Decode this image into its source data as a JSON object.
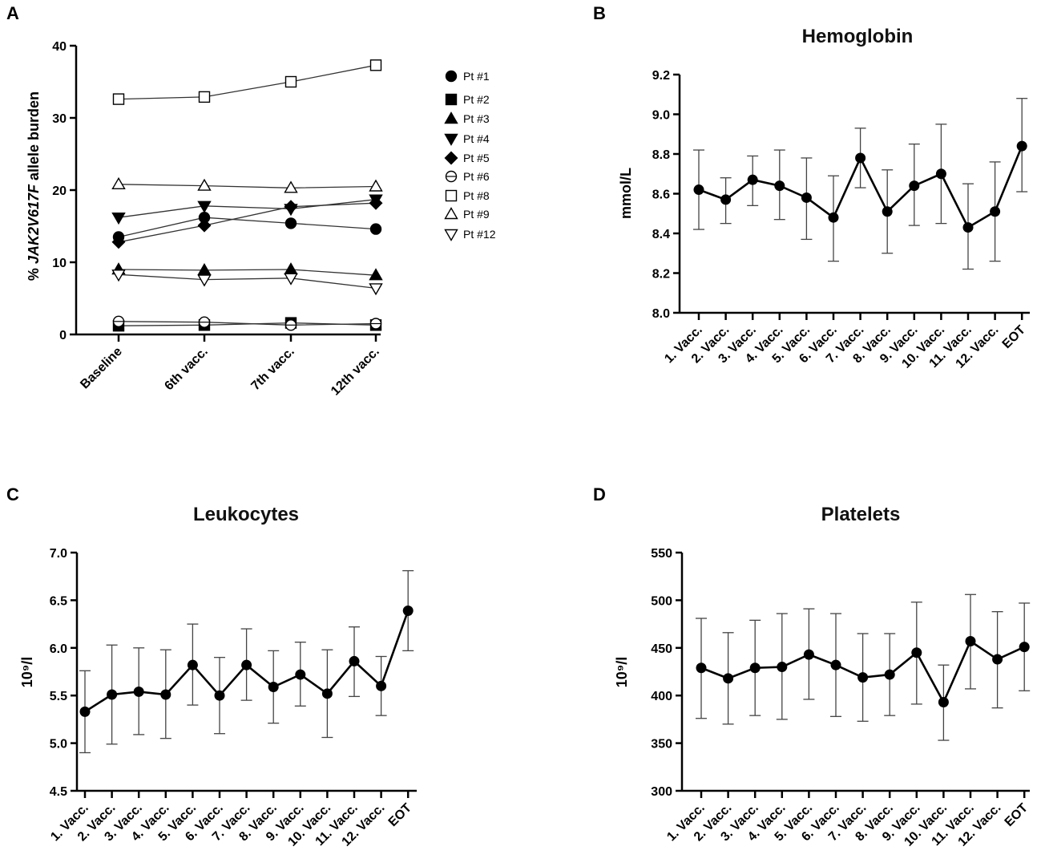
{
  "chart_data": [
    {
      "id": "A",
      "panel_label": "A",
      "type": "line",
      "title": "",
      "ylabel_prefix": "% ",
      "ylabel_italic": "JAK2V617F",
      "ylabel_suffix": " allele burden",
      "ylim": [
        0,
        40
      ],
      "yticks": [
        0,
        10,
        20,
        30,
        40
      ],
      "categories": [
        "Baseline",
        "6th vacc.",
        "7th vacc.",
        "12th vacc."
      ],
      "legend_position": "right",
      "series": [
        {
          "name": "Pt #1",
          "marker": "circle-filled",
          "values": [
            13.5,
            16.2,
            15.4,
            14.6
          ]
        },
        {
          "name": "Pt #2",
          "marker": "square-filled",
          "values": [
            1.2,
            1.3,
            1.6,
            1.3
          ]
        },
        {
          "name": "Pt #3",
          "marker": "triangle-up-filled",
          "values": [
            9.0,
            8.9,
            9.0,
            8.2
          ]
        },
        {
          "name": "Pt #4",
          "marker": "triangle-down-filled",
          "values": [
            16.2,
            17.8,
            17.4,
            18.7
          ]
        },
        {
          "name": "Pt #5",
          "marker": "diamond-filled",
          "values": [
            12.8,
            15.1,
            17.7,
            18.2
          ]
        },
        {
          "name": "Pt #6",
          "marker": "circle-open-line",
          "values": [
            1.8,
            1.7,
            1.3,
            1.5
          ]
        },
        {
          "name": "Pt #8",
          "marker": "square-open",
          "values": [
            32.6,
            32.9,
            35.0,
            37.3
          ]
        },
        {
          "name": "Pt #9",
          "marker": "triangle-up-open",
          "values": [
            20.8,
            20.6,
            20.3,
            20.5
          ]
        },
        {
          "name": "Pt #12",
          "marker": "triangle-down-open",
          "values": [
            8.3,
            7.6,
            7.8,
            6.4
          ]
        }
      ]
    },
    {
      "id": "B",
      "panel_label": "B",
      "type": "line",
      "title": "Hemoglobin",
      "ylabel": "mmol/L",
      "ylim": [
        8.0,
        9.2
      ],
      "yticks": [
        "8.0",
        "8.2",
        "8.4",
        "8.6",
        "8.8",
        "9.0",
        "9.2"
      ],
      "categories": [
        "1. Vacc.",
        "2. Vacc.",
        "3. Vacc.",
        "4. Vacc.",
        "5. Vacc.",
        "6. Vacc.",
        "7. Vacc.",
        "8. Vacc.",
        "9. Vacc.",
        "10. Vacc.",
        "11. Vacc.",
        "12. Vacc.",
        "EOT"
      ],
      "values": [
        8.62,
        8.57,
        8.67,
        8.64,
        8.58,
        8.48,
        8.78,
        8.51,
        8.64,
        8.7,
        8.43,
        8.51,
        8.84
      ],
      "error_low": [
        8.42,
        8.45,
        8.54,
        8.47,
        8.37,
        8.26,
        8.63,
        8.3,
        8.44,
        8.45,
        8.22,
        8.26,
        8.61
      ],
      "error_high": [
        8.82,
        8.68,
        8.79,
        8.82,
        8.78,
        8.69,
        8.93,
        8.72,
        8.85,
        8.95,
        8.65,
        8.76,
        9.08
      ]
    },
    {
      "id": "C",
      "panel_label": "C",
      "type": "line",
      "title": "Leukocytes",
      "ylabel": "10⁹/l",
      "ylim": [
        4.5,
        7.0
      ],
      "yticks": [
        "4.5",
        "5.0",
        "5.5",
        "6.0",
        "6.5",
        "7.0"
      ],
      "categories": [
        "1. Vacc.",
        "2. Vacc.",
        "3. Vacc.",
        "4. Vacc.",
        "5. Vacc.",
        "6. Vacc.",
        "7. Vacc.",
        "8. Vacc.",
        "9. Vacc.",
        "10. Vacc.",
        "11. Vacc.",
        "12. Vacc.",
        "EOT"
      ],
      "values": [
        5.33,
        5.51,
        5.54,
        5.51,
        5.82,
        5.5,
        5.82,
        5.59,
        5.72,
        5.52,
        5.86,
        5.6,
        6.39
      ],
      "error_low": [
        4.9,
        4.99,
        5.09,
        5.05,
        5.4,
        5.1,
        5.45,
        5.21,
        5.39,
        5.06,
        5.49,
        5.29,
        5.97
      ],
      "error_high": [
        5.76,
        6.03,
        6.0,
        5.98,
        6.25,
        5.9,
        6.2,
        5.97,
        6.06,
        5.98,
        6.22,
        5.91,
        6.81
      ]
    },
    {
      "id": "D",
      "panel_label": "D",
      "type": "line",
      "title": "Platelets",
      "ylabel": "10⁹/l",
      "ylim": [
        300,
        550
      ],
      "yticks": [
        "300",
        "350",
        "400",
        "450",
        "500",
        "550"
      ],
      "categories": [
        "1. Vacc.",
        "2. Vacc.",
        "3. Vacc.",
        "4. Vacc.",
        "5. Vacc.",
        "6. Vacc.",
        "7. Vacc.",
        "8. Vacc.",
        "9. Vacc.",
        "10. Vacc.",
        "11. Vacc.",
        "12. Vacc.",
        "EOT"
      ],
      "values": [
        429,
        418,
        429,
        430,
        443,
        432,
        419,
        422,
        445,
        393,
        457,
        438,
        451
      ],
      "error_low": [
        376,
        370,
        379,
        375,
        396,
        378,
        373,
        379,
        391,
        353,
        407,
        387,
        405
      ],
      "error_high": [
        481,
        466,
        479,
        486,
        491,
        486,
        465,
        465,
        498,
        432,
        506,
        488,
        497
      ]
    }
  ]
}
